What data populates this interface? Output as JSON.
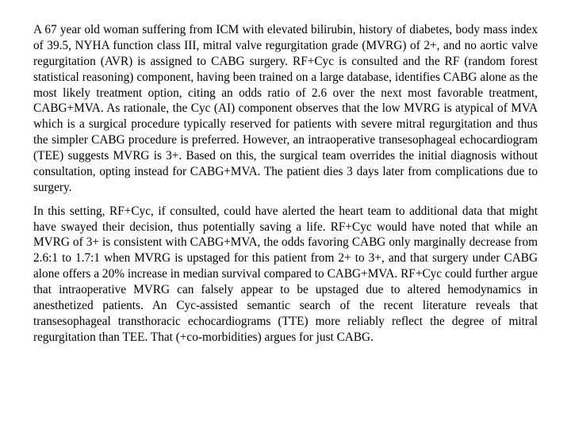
{
  "doc": {
    "background_color": "#ffffff",
    "text_color": "#000000",
    "font_family": "Times New Roman",
    "font_size_pt": 12,
    "line_height": 1.3,
    "text_align": "justify",
    "paragraphs": [
      "A 67 year old woman suffering from ICM with elevated bilirubin, history of diabetes, body mass index of 39.5, NYHA function class III, mitral valve regurgitation grade (MVRG) of 2+, and no aortic valve regurgitation (AVR) is assigned to CABG surgery.  RF+Cyc is consulted and the RF (random forest statistical reasoning) component, having been trained on a large database, identifies CABG alone as the most likely treatment option, citing an odds ratio of 2.6 over the next most favorable treatment, CABG+MVA.  As rationale, the Cyc (AI) component observes that the low MVRG is atypical of MVA which is a surgical procedure typically reserved for patients with severe mitral regurgitation and thus the simpler CABG procedure is preferred.  However, an intraoperative transesophageal echocardiogram (TEE) suggests MVRG is 3+.  Based on this, the surgical team overrides the initial diagnosis without consultation, opting instead for CABG+MVA.  The patient dies 3 days later from complications due to surgery.",
      "In this setting, RF+Cyc, if consulted, could have alerted the heart team to additional data that might have swayed their decision, thus potentially saving a life.   RF+Cyc would have noted that while an MVRG of 3+ is consistent with CABG+MVA, the odds favoring CABG only marginally decrease from 2.6:1 to 1.7:1 when MVRG is upstaged for this patient from 2+ to 3+, and that surgery under CABG alone offers a 20% increase in median survival compared to CABG+MVA.  RF+Cyc could further argue that intraoperative MVRG can falsely appear to be upstaged due to altered hemodynamics in anesthetized patients.  An Cyc-assisted semantic search of the recent literature reveals that transesophageal transthoracic echocardiograms (TTE) more reliably reflect the degree of mitral regurgitation than TEE.  That (+co-morbidities) argues for just CABG."
    ]
  }
}
